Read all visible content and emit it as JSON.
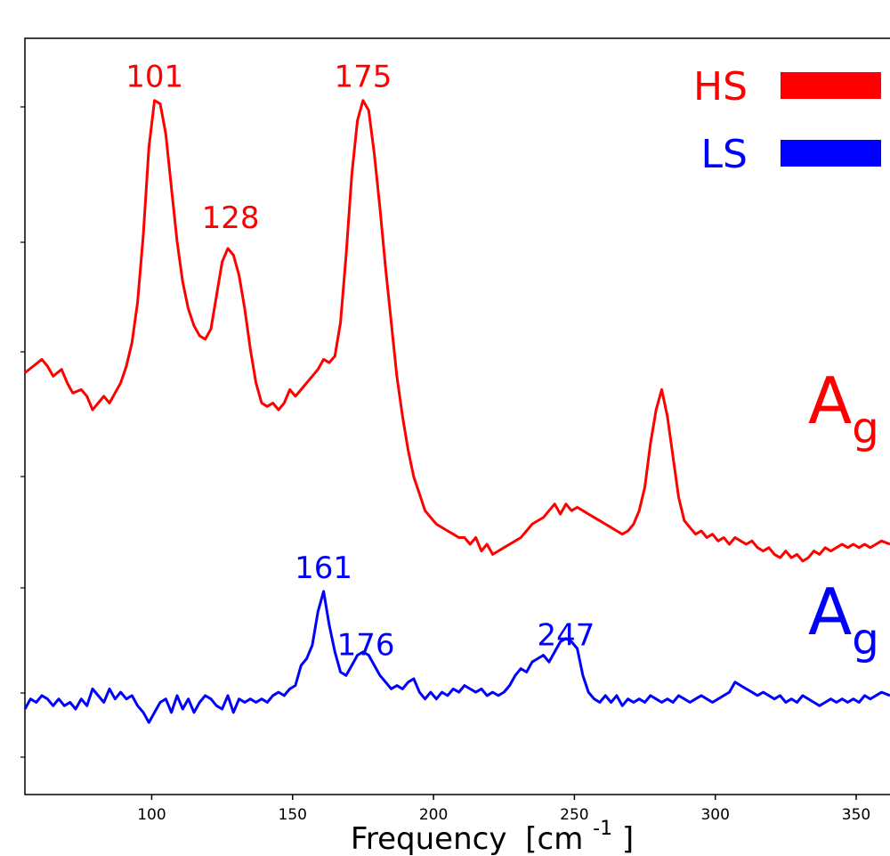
{
  "chart_data": {
    "type": "line",
    "title": "",
    "xlabel": "Frequency",
    "xlabel_unit_base": "[cm",
    "xlabel_unit_exp": "-1",
    "xlabel_unit_close": "]",
    "ylabel": "",
    "xlim": [
      55,
      362
    ],
    "ylim": [
      0,
      100
    ],
    "x_ticks": [
      "100",
      "150",
      "200",
      "250",
      "300",
      "350"
    ],
    "y_ticks_labeled": false,
    "grid": false,
    "legend": {
      "placement": "top-right",
      "entries": [
        {
          "label": "HS",
          "color": "#ff0000"
        },
        {
          "label": "LS",
          "color": "#0000ff"
        }
      ]
    },
    "series": [
      {
        "name": "HS",
        "color": "#ff0000",
        "side_label": "A",
        "side_label_sub": "g",
        "peak_labels": [
          {
            "text": "101",
            "x": 101,
            "y": 97
          },
          {
            "text": "128",
            "x": 128,
            "y": 76
          },
          {
            "text": "175",
            "x": 175,
            "y": 97
          }
        ],
        "points": [
          [
            55,
            54.5
          ],
          [
            58,
            55.5
          ],
          [
            61,
            56.5
          ],
          [
            63,
            55.5
          ],
          [
            65,
            54.0
          ],
          [
            68,
            55.0
          ],
          [
            70,
            53.0
          ],
          [
            72,
            51.5
          ],
          [
            75,
            52.0
          ],
          [
            77,
            51.0
          ],
          [
            79,
            49.0
          ],
          [
            81,
            50.0
          ],
          [
            83,
            51.0
          ],
          [
            85,
            50.0
          ],
          [
            87,
            51.5
          ],
          [
            89,
            53.0
          ],
          [
            91,
            55.5
          ],
          [
            93,
            59.0
          ],
          [
            95,
            65.0
          ],
          [
            97,
            75.0
          ],
          [
            99,
            88.0
          ],
          [
            101,
            95.0
          ],
          [
            103,
            94.5
          ],
          [
            105,
            90.0
          ],
          [
            107,
            82.0
          ],
          [
            109,
            74.0
          ],
          [
            111,
            68.0
          ],
          [
            113,
            64.0
          ],
          [
            115,
            61.5
          ],
          [
            117,
            60.0
          ],
          [
            119,
            59.5
          ],
          [
            121,
            61.0
          ],
          [
            123,
            66.0
          ],
          [
            125,
            71.0
          ],
          [
            127,
            73.0
          ],
          [
            129,
            72.0
          ],
          [
            131,
            69.0
          ],
          [
            133,
            64.0
          ],
          [
            135,
            58.0
          ],
          [
            137,
            53.0
          ],
          [
            139,
            50.0
          ],
          [
            141,
            49.5
          ],
          [
            143,
            50.0
          ],
          [
            145,
            49.0
          ],
          [
            147,
            50.0
          ],
          [
            149,
            52.0
          ],
          [
            151,
            51.0
          ],
          [
            153,
            52.0
          ],
          [
            155,
            53.0
          ],
          [
            157,
            54.0
          ],
          [
            159,
            55.0
          ],
          [
            161,
            56.5
          ],
          [
            163,
            56.0
          ],
          [
            165,
            57.0
          ],
          [
            167,
            62.0
          ],
          [
            169,
            72.0
          ],
          [
            171,
            84.0
          ],
          [
            173,
            92.0
          ],
          [
            175,
            95.0
          ],
          [
            177,
            93.5
          ],
          [
            179,
            87.0
          ],
          [
            181,
            79.0
          ],
          [
            183,
            70.0
          ],
          [
            185,
            62.0
          ],
          [
            187,
            54.0
          ],
          [
            189,
            48.0
          ],
          [
            191,
            43.0
          ],
          [
            193,
            39.0
          ],
          [
            195,
            36.5
          ],
          [
            197,
            34.0
          ],
          [
            199,
            33.0
          ],
          [
            201,
            32.0
          ],
          [
            203,
            31.5
          ],
          [
            205,
            31.0
          ],
          [
            207,
            30.5
          ],
          [
            209,
            30.0
          ],
          [
            211,
            30.0
          ],
          [
            213,
            29.0
          ],
          [
            215,
            30.0
          ],
          [
            217,
            28.0
          ],
          [
            219,
            29.0
          ],
          [
            221,
            27.5
          ],
          [
            223,
            28.0
          ],
          [
            225,
            28.5
          ],
          [
            227,
            29.0
          ],
          [
            229,
            29.5
          ],
          [
            231,
            30.0
          ],
          [
            233,
            31.0
          ],
          [
            235,
            32.0
          ],
          [
            237,
            32.5
          ],
          [
            239,
            33.0
          ],
          [
            241,
            34.0
          ],
          [
            243,
            35.0
          ],
          [
            245,
            33.5
          ],
          [
            247,
            35.0
          ],
          [
            249,
            34.0
          ],
          [
            251,
            34.5
          ],
          [
            253,
            34.0
          ],
          [
            255,
            33.5
          ],
          [
            257,
            33.0
          ],
          [
            259,
            32.5
          ],
          [
            261,
            32.0
          ],
          [
            263,
            31.5
          ],
          [
            265,
            31.0
          ],
          [
            267,
            30.5
          ],
          [
            269,
            31.0
          ],
          [
            271,
            32.0
          ],
          [
            273,
            34.0
          ],
          [
            275,
            37.5
          ],
          [
            277,
            44.0
          ],
          [
            279,
            49.0
          ],
          [
            281,
            52.0
          ],
          [
            283,
            48.0
          ],
          [
            285,
            42.0
          ],
          [
            287,
            36.0
          ],
          [
            289,
            32.5
          ],
          [
            291,
            31.5
          ],
          [
            293,
            30.5
          ],
          [
            295,
            31.0
          ],
          [
            297,
            30.0
          ],
          [
            299,
            30.5
          ],
          [
            301,
            29.5
          ],
          [
            303,
            30.0
          ],
          [
            305,
            29.0
          ],
          [
            307,
            30.0
          ],
          [
            309,
            29.5
          ],
          [
            311,
            29.0
          ],
          [
            313,
            29.5
          ],
          [
            315,
            28.5
          ],
          [
            317,
            28.0
          ],
          [
            319,
            28.5
          ],
          [
            321,
            27.5
          ],
          [
            323,
            27.0
          ],
          [
            325,
            28.0
          ],
          [
            327,
            27.0
          ],
          [
            329,
            27.5
          ],
          [
            331,
            26.5
          ],
          [
            333,
            27.0
          ],
          [
            335,
            28.0
          ],
          [
            337,
            27.5
          ],
          [
            339,
            28.5
          ],
          [
            341,
            28.0
          ],
          [
            343,
            28.5
          ],
          [
            345,
            29.0
          ],
          [
            347,
            28.5
          ],
          [
            349,
            29.0
          ],
          [
            351,
            28.5
          ],
          [
            353,
            29.0
          ],
          [
            355,
            28.5
          ],
          [
            357,
            29.0
          ],
          [
            359,
            29.5
          ],
          [
            362,
            29.0
          ]
        ]
      },
      {
        "name": "LS",
        "color": "#0000ff",
        "side_label": "A",
        "side_label_sub": "g",
        "peak_labels": [
          {
            "text": "161",
            "x": 161,
            "y": 24
          },
          {
            "text": "176",
            "x": 176,
            "y": 12.5
          },
          {
            "text": "247",
            "x": 247,
            "y": 14
          }
        ],
        "points": [
          [
            55,
            4.5
          ],
          [
            57,
            6.0
          ],
          [
            59,
            5.5
          ],
          [
            61,
            6.5
          ],
          [
            63,
            6.0
          ],
          [
            65,
            5.0
          ],
          [
            67,
            6.0
          ],
          [
            69,
            5.0
          ],
          [
            71,
            5.5
          ],
          [
            73,
            4.5
          ],
          [
            75,
            6.0
          ],
          [
            77,
            5.0
          ],
          [
            79,
            7.5
          ],
          [
            81,
            6.5
          ],
          [
            83,
            5.5
          ],
          [
            85,
            7.5
          ],
          [
            87,
            6.0
          ],
          [
            89,
            7.0
          ],
          [
            91,
            6.0
          ],
          [
            93,
            6.5
          ],
          [
            95,
            5.0
          ],
          [
            97,
            4.0
          ],
          [
            99,
            2.5
          ],
          [
            101,
            4.0
          ],
          [
            103,
            5.5
          ],
          [
            105,
            6.0
          ],
          [
            107,
            4.0
          ],
          [
            109,
            6.5
          ],
          [
            111,
            4.5
          ],
          [
            113,
            6.0
          ],
          [
            115,
            4.0
          ],
          [
            117,
            5.5
          ],
          [
            119,
            6.5
          ],
          [
            121,
            6.0
          ],
          [
            123,
            5.0
          ],
          [
            125,
            4.5
          ],
          [
            127,
            6.5
          ],
          [
            129,
            4.0
          ],
          [
            131,
            6.0
          ],
          [
            133,
            5.5
          ],
          [
            135,
            6.0
          ],
          [
            137,
            5.5
          ],
          [
            139,
            6.0
          ],
          [
            141,
            5.5
          ],
          [
            143,
            6.5
          ],
          [
            145,
            7.0
          ],
          [
            147,
            6.5
          ],
          [
            149,
            7.5
          ],
          [
            151,
            8.0
          ],
          [
            153,
            11.0
          ],
          [
            155,
            12.0
          ],
          [
            157,
            14.0
          ],
          [
            159,
            19.0
          ],
          [
            161,
            22.0
          ],
          [
            163,
            17.0
          ],
          [
            165,
            13.0
          ],
          [
            167,
            10.0
          ],
          [
            169,
            9.5
          ],
          [
            171,
            11.0
          ],
          [
            173,
            12.5
          ],
          [
            175,
            13.0
          ],
          [
            177,
            12.5
          ],
          [
            179,
            11.0
          ],
          [
            181,
            9.5
          ],
          [
            183,
            8.5
          ],
          [
            185,
            7.5
          ],
          [
            187,
            8.0
          ],
          [
            189,
            7.5
          ],
          [
            191,
            8.5
          ],
          [
            193,
            9.0
          ],
          [
            195,
            7.0
          ],
          [
            197,
            6.0
          ],
          [
            199,
            7.0
          ],
          [
            201,
            6.0
          ],
          [
            203,
            7.0
          ],
          [
            205,
            6.5
          ],
          [
            207,
            7.5
          ],
          [
            209,
            7.0
          ],
          [
            211,
            8.0
          ],
          [
            213,
            7.5
          ],
          [
            215,
            7.0
          ],
          [
            217,
            7.5
          ],
          [
            219,
            6.5
          ],
          [
            221,
            7.0
          ],
          [
            223,
            6.5
          ],
          [
            225,
            7.0
          ],
          [
            227,
            8.0
          ],
          [
            229,
            9.5
          ],
          [
            231,
            10.5
          ],
          [
            233,
            10.0
          ],
          [
            235,
            11.5
          ],
          [
            237,
            12.0
          ],
          [
            239,
            12.5
          ],
          [
            241,
            11.5
          ],
          [
            243,
            13.0
          ],
          [
            245,
            14.5
          ],
          [
            247,
            15.0
          ],
          [
            249,
            14.5
          ],
          [
            251,
            13.5
          ],
          [
            253,
            9.5
          ],
          [
            255,
            7.0
          ],
          [
            257,
            6.0
          ],
          [
            259,
            5.5
          ],
          [
            261,
            6.5
          ],
          [
            263,
            5.5
          ],
          [
            265,
            6.5
          ],
          [
            267,
            5.0
          ],
          [
            269,
            6.0
          ],
          [
            271,
            5.5
          ],
          [
            273,
            6.0
          ],
          [
            275,
            5.5
          ],
          [
            277,
            6.5
          ],
          [
            279,
            6.0
          ],
          [
            281,
            5.5
          ],
          [
            283,
            6.0
          ],
          [
            285,
            5.5
          ],
          [
            287,
            6.5
          ],
          [
            289,
            6.0
          ],
          [
            291,
            5.5
          ],
          [
            293,
            6.0
          ],
          [
            295,
            6.5
          ],
          [
            297,
            6.0
          ],
          [
            299,
            5.5
          ],
          [
            301,
            6.0
          ],
          [
            303,
            6.5
          ],
          [
            305,
            7.0
          ],
          [
            307,
            8.5
          ],
          [
            309,
            8.0
          ],
          [
            311,
            7.5
          ],
          [
            313,
            7.0
          ],
          [
            315,
            6.5
          ],
          [
            317,
            7.0
          ],
          [
            319,
            6.5
          ],
          [
            321,
            6.0
          ],
          [
            323,
            6.5
          ],
          [
            325,
            5.5
          ],
          [
            327,
            6.0
          ],
          [
            329,
            5.5
          ],
          [
            331,
            6.5
          ],
          [
            333,
            6.0
          ],
          [
            335,
            5.5
          ],
          [
            337,
            5.0
          ],
          [
            339,
            5.5
          ],
          [
            341,
            6.0
          ],
          [
            343,
            5.5
          ],
          [
            345,
            6.0
          ],
          [
            347,
            5.5
          ],
          [
            349,
            6.0
          ],
          [
            351,
            5.5
          ],
          [
            353,
            6.5
          ],
          [
            355,
            6.0
          ],
          [
            357,
            6.5
          ],
          [
            359,
            7.0
          ],
          [
            362,
            6.5
          ]
        ]
      }
    ]
  }
}
